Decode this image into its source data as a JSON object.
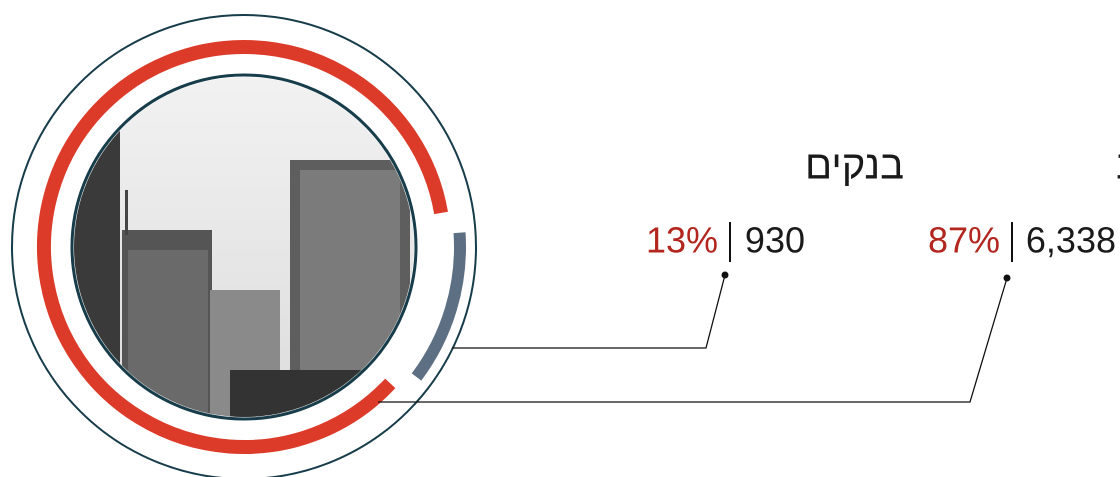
{
  "chart_data": {
    "type": "donut",
    "categories": [
      "אגרות חוב",
      "בנקים"
    ],
    "values": [
      87,
      13
    ],
    "value_labels": [
      "87%",
      "13%"
    ],
    "amounts": [
      6338,
      930
    ],
    "amount_labels": [
      "6,338",
      "930"
    ],
    "colors": [
      "#dc3b2a",
      "#5d6f82"
    ],
    "percent_color": "#b3261e"
  }
}
